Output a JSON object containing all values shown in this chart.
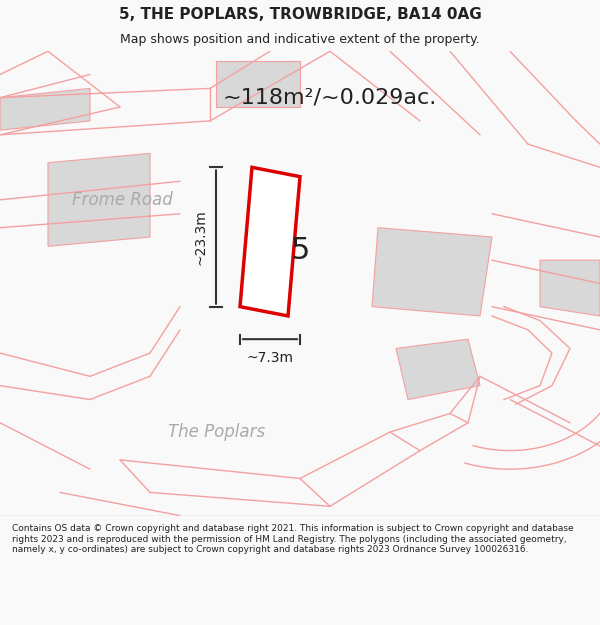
{
  "title": "5, THE POPLARS, TROWBRIDGE, BA14 0AG",
  "subtitle": "Map shows position and indicative extent of the property.",
  "area_text": "~118m²/~0.029ac.",
  "dim_height": "~23.3m",
  "dim_width": "~7.3m",
  "plot_number": "5",
  "road_label1": "Frome Road",
  "road_label2": "The Poplars",
  "footer_text": "Contains OS data © Crown copyright and database right 2021. This information is subject to Crown copyright and database rights 2023 and is reproduced with the permission of HM Land Registry. The polygons (including the associated geometry, namely x, y co-ordinates) are subject to Crown copyright and database rights 2023 Ordnance Survey 100026316.",
  "bg_color": "#f9f9f9",
  "map_bg": "#ffffff",
  "outline_color": "#f4a0a0",
  "red_plot_color": "#dd0000",
  "gray_block_color": "#d8d8d8",
  "road_color": "#f0f0f0",
  "footer_bg": "#ffffff",
  "text_color": "#222222",
  "dim_line_color": "#333333"
}
